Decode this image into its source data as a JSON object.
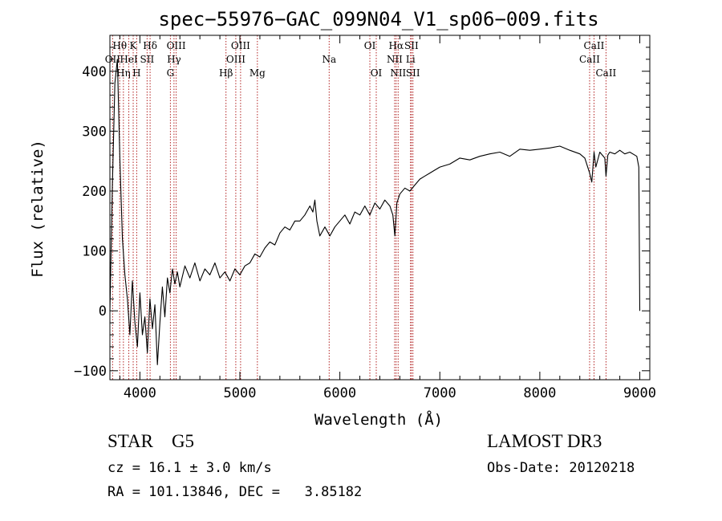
{
  "chart_data": {
    "type": "line",
    "title": "spec−55976−GAC_099N04_V1_sp06−009.fits",
    "xlabel": "Wavelength (Å)",
    "ylabel": "Flux (relative)",
    "xlim": [
      3700,
      9100
    ],
    "ylim": [
      -115,
      460
    ],
    "xticks": [
      4000,
      5000,
      6000,
      7000,
      8000,
      9000
    ],
    "xtick_labels": [
      "4000",
      "5000",
      "6000",
      "7000",
      "8000",
      "9000"
    ],
    "yticks": [
      -100,
      0,
      100,
      200,
      300,
      400
    ],
    "ytick_labels": [
      "−100",
      "0",
      "100",
      "200",
      "300",
      "400"
    ],
    "series": [
      {
        "name": "spectrum",
        "color": "#000000",
        "x": [
          3700,
          3725,
          3750,
          3775,
          3800,
          3825,
          3850,
          3875,
          3900,
          3925,
          3950,
          3975,
          4000,
          4025,
          4050,
          4075,
          4100,
          4125,
          4150,
          4175,
          4200,
          4225,
          4250,
          4275,
          4300,
          4325,
          4350,
          4375,
          4400,
          4450,
          4500,
          4550,
          4600,
          4650,
          4700,
          4750,
          4800,
          4850,
          4900,
          4950,
          5000,
          5050,
          5100,
          5150,
          5200,
          5250,
          5300,
          5350,
          5400,
          5450,
          5500,
          5550,
          5600,
          5650,
          5700,
          5730,
          5750,
          5770,
          5800,
          5850,
          5900,
          5950,
          6000,
          6050,
          6100,
          6150,
          6200,
          6250,
          6300,
          6350,
          6400,
          6450,
          6500,
          6530,
          6550,
          6570,
          6600,
          6650,
          6700,
          6750,
          6800,
          6850,
          6900,
          6950,
          7000,
          7100,
          7200,
          7300,
          7400,
          7500,
          7600,
          7700,
          7800,
          7900,
          8000,
          8100,
          8200,
          8300,
          8400,
          8450,
          8498,
          8520,
          8542,
          8560,
          8600,
          8650,
          8662,
          8680,
          8700,
          8750,
          8800,
          8850,
          8900,
          8950,
          8970,
          8990,
          8995,
          9000
        ],
        "y": [
          0,
          210,
          380,
          420,
          250,
          120,
          60,
          20,
          -40,
          50,
          -20,
          -60,
          30,
          -40,
          -10,
          -70,
          20,
          -30,
          10,
          -90,
          -20,
          40,
          -10,
          55,
          30,
          70,
          45,
          65,
          40,
          75,
          55,
          80,
          50,
          70,
          60,
          80,
          55,
          65,
          50,
          70,
          60,
          75,
          80,
          95,
          90,
          105,
          115,
          110,
          130,
          140,
          135,
          150,
          150,
          160,
          175,
          165,
          185,
          150,
          125,
          140,
          125,
          140,
          150,
          160,
          145,
          165,
          160,
          175,
          160,
          180,
          170,
          185,
          175,
          160,
          125,
          180,
          195,
          205,
          200,
          210,
          220,
          225,
          230,
          235,
          240,
          245,
          255,
          252,
          258,
          262,
          265,
          258,
          270,
          268,
          270,
          272,
          275,
          268,
          262,
          255,
          230,
          215,
          265,
          240,
          265,
          255,
          225,
          260,
          265,
          262,
          268,
          262,
          265,
          260,
          258,
          240,
          120,
          0
        ]
      }
    ],
    "lines": [
      {
        "name": "OII",
        "wave": 3727,
        "row": 1
      },
      {
        "name": "Hθ",
        "wave": 3798,
        "row": 0
      },
      {
        "name": "Hη",
        "wave": 3835,
        "row": 2
      },
      {
        "name": "K",
        "wave": 3933,
        "row": 0
      },
      {
        "name": "H",
        "wave": 3968,
        "row": 2
      },
      {
        "name": "HeI",
        "wave": 3889,
        "row": 1
      },
      {
        "name": "SII",
        "wave": 4072,
        "row": 1
      },
      {
        "name": "Hδ",
        "wave": 4102,
        "row": 0
      },
      {
        "name": "G",
        "wave": 4305,
        "row": 2
      },
      {
        "name": "Hγ",
        "wave": 4341,
        "row": 1
      },
      {
        "name": "OIII",
        "wave": 4363,
        "row": 0
      },
      {
        "name": "Hβ",
        "wave": 4861,
        "row": 2
      },
      {
        "name": "OIII",
        "wave": 4959,
        "row": 1
      },
      {
        "name": "OIII",
        "wave": 5007,
        "row": 0
      },
      {
        "name": "Mg",
        "wave": 5175,
        "row": 2
      },
      {
        "name": "Na",
        "wave": 5893,
        "row": 1
      },
      {
        "name": "OI",
        "wave": 6300,
        "row": 0
      },
      {
        "name": "OI",
        "wave": 6364,
        "row": 2
      },
      {
        "name": "NII",
        "wave": 6548,
        "row": 1
      },
      {
        "name": "Hα",
        "wave": 6563,
        "row": 0
      },
      {
        "name": "NII",
        "wave": 6583,
        "row": 2
      },
      {
        "name": "Li",
        "wave": 6707,
        "row": 1
      },
      {
        "name": "SII",
        "wave": 6716,
        "row": 0
      },
      {
        "name": "SII",
        "wave": 6731,
        "row": 2
      },
      {
        "name": "CaII",
        "wave": 8498,
        "row": 1
      },
      {
        "name": "CaII",
        "wave": 8542,
        "row": 0
      },
      {
        "name": "CaII",
        "wave": 8662,
        "row": 2
      }
    ],
    "line_color": "#b22222"
  },
  "info": {
    "class_label": "STAR    G5",
    "survey": "LAMOST DR3",
    "cz": "cz = 16.1 ± 3.0 km/s",
    "obs_date": "Obs-Date: 20120218",
    "radec": "RA = 101.13846, DEC =   3.85182"
  }
}
